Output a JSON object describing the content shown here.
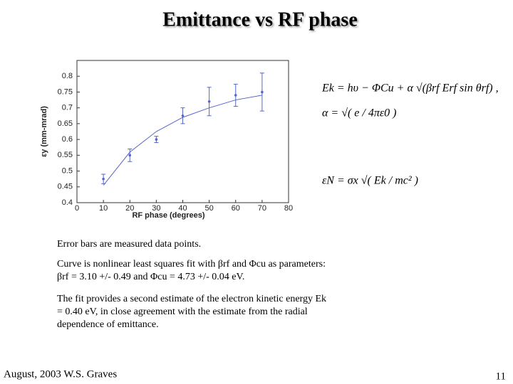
{
  "slide": {
    "title": "Emittance vs RF phase",
    "equations": [
      "Ek = hυ − ΦCu + α √(βrf Erf sin θrf) ,",
      "α = √( e / 4πε0 )",
      "εN = σx √( Ek / mc² )"
    ],
    "paragraphs": [
      "Error bars are measured data points.",
      "Curve is nonlinear least squares fit with βrf and Φcu as parameters: βrf = 3.10 +/- 0.49 and Φcu = 4.73 +/- 0.04 eV.",
      "The fit provides a second estimate of the electron kinetic energy Ek = 0.40 eV, in close agreement with the estimate from the radial dependence of emittance."
    ],
    "footer": "August, 2003  W.S. Graves",
    "page_number": "11"
  },
  "chart_data": {
    "type": "scatter",
    "x_label": "RF phase (degrees)",
    "y_label": "εy (mm-mrad)",
    "x": [
      10,
      20,
      30,
      40,
      50,
      60,
      70
    ],
    "values": [
      0.475,
      0.55,
      0.6,
      0.675,
      0.72,
      0.74,
      0.75
    ],
    "errors": [
      0.015,
      0.02,
      0.01,
      0.025,
      0.045,
      0.035,
      0.06
    ],
    "fit_values": [
      0.455,
      0.56,
      0.625,
      0.67,
      0.7,
      0.725,
      0.74
    ],
    "color": "#5566cc",
    "xlim": [
      0,
      80
    ],
    "xticks": [
      0,
      10,
      20,
      30,
      40,
      50,
      60,
      70,
      80
    ],
    "ylim": [
      0.4,
      0.85
    ],
    "yticks": [
      0.4,
      0.45,
      0.5,
      0.55,
      0.6,
      0.65,
      0.7,
      0.75,
      0.8
    ]
  }
}
